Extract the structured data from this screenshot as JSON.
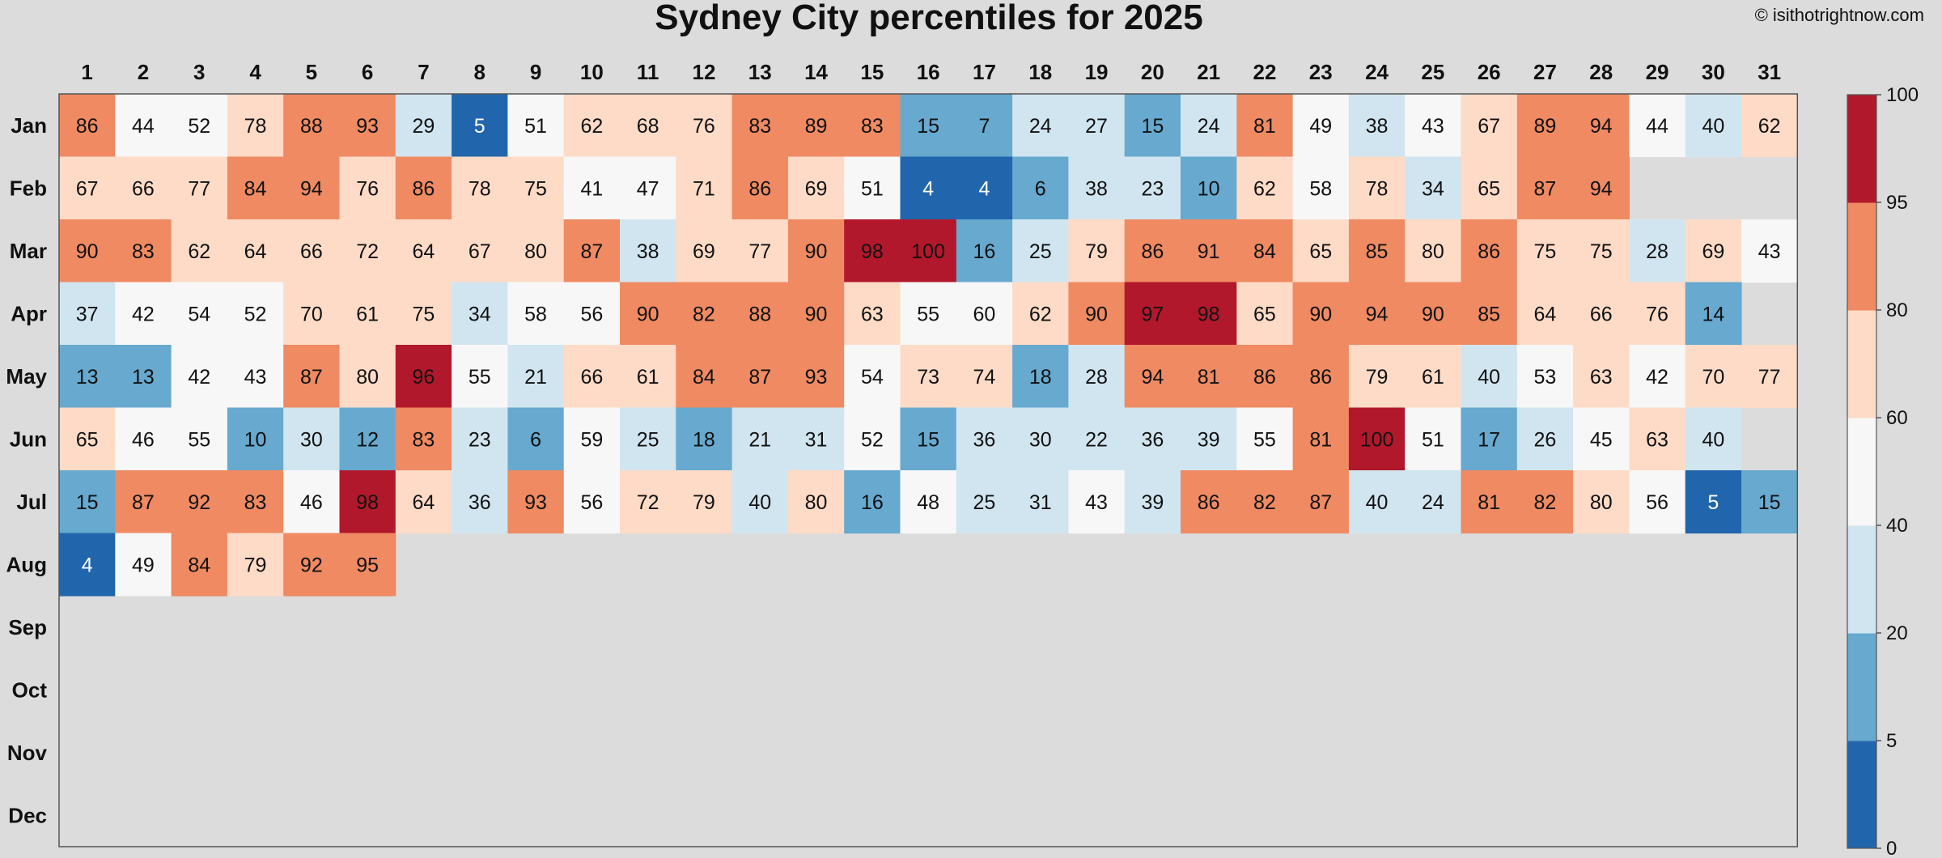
{
  "chart_data": {
    "type": "heatmap",
    "title": "Sydney City percentiles for 2025",
    "credit": "© isithotrightnow.com",
    "x_categories": [
      "1",
      "2",
      "3",
      "4",
      "5",
      "6",
      "7",
      "8",
      "9",
      "10",
      "11",
      "12",
      "13",
      "14",
      "15",
      "16",
      "17",
      "18",
      "19",
      "20",
      "21",
      "22",
      "23",
      "24",
      "25",
      "26",
      "27",
      "28",
      "29",
      "30",
      "31"
    ],
    "y_categories": [
      "Jan",
      "Feb",
      "Mar",
      "Apr",
      "May",
      "Jun",
      "Jul",
      "Aug",
      "Sep",
      "Oct",
      "Nov",
      "Dec"
    ],
    "values": [
      [
        86,
        44,
        52,
        78,
        88,
        93,
        29,
        5,
        51,
        62,
        68,
        76,
        83,
        89,
        83,
        15,
        7,
        24,
        27,
        15,
        24,
        81,
        49,
        38,
        43,
        67,
        89,
        94,
        44,
        40,
        62
      ],
      [
        67,
        66,
        77,
        84,
        94,
        76,
        86,
        78,
        75,
        41,
        47,
        71,
        86,
        69,
        51,
        4,
        4,
        6,
        38,
        23,
        10,
        62,
        58,
        78,
        34,
        65,
        87,
        94,
        null,
        null,
        null
      ],
      [
        90,
        83,
        62,
        64,
        66,
        72,
        64,
        67,
        80,
        87,
        38,
        69,
        77,
        90,
        98,
        100,
        16,
        25,
        79,
        86,
        91,
        84,
        65,
        85,
        80,
        86,
        75,
        75,
        28,
        69,
        43
      ],
      [
        37,
        42,
        54,
        52,
        70,
        61,
        75,
        34,
        58,
        56,
        90,
        82,
        88,
        90,
        63,
        55,
        60,
        62,
        90,
        97,
        98,
        65,
        90,
        94,
        90,
        85,
        64,
        66,
        76,
        14,
        null
      ],
      [
        13,
        13,
        42,
        43,
        87,
        80,
        96,
        55,
        21,
        66,
        61,
        84,
        87,
        93,
        54,
        73,
        74,
        18,
        28,
        94,
        81,
        86,
        86,
        79,
        61,
        40,
        53,
        63,
        42,
        70,
        77
      ],
      [
        65,
        46,
        55,
        10,
        30,
        12,
        83,
        23,
        6,
        59,
        25,
        18,
        21,
        31,
        52,
        15,
        36,
        30,
        22,
        36,
        39,
        55,
        81,
        100,
        51,
        17,
        26,
        45,
        63,
        40,
        null
      ],
      [
        15,
        87,
        92,
        83,
        46,
        98,
        64,
        36,
        93,
        56,
        72,
        79,
        40,
        80,
        16,
        48,
        25,
        31,
        43,
        39,
        86,
        82,
        87,
        40,
        24,
        81,
        82,
        80,
        56,
        5,
        15
      ],
      [
        4,
        49,
        84,
        79,
        92,
        95,
        null,
        null,
        null,
        null,
        null,
        null,
        null,
        null,
        null,
        null,
        null,
        null,
        null,
        null,
        null,
        null,
        null,
        null,
        null,
        null,
        null,
        null,
        null,
        null,
        null
      ],
      [
        null,
        null,
        null,
        null,
        null,
        null,
        null,
        null,
        null,
        null,
        null,
        null,
        null,
        null,
        null,
        null,
        null,
        null,
        null,
        null,
        null,
        null,
        null,
        null,
        null,
        null,
        null,
        null,
        null,
        null,
        null
      ],
      [
        null,
        null,
        null,
        null,
        null,
        null,
        null,
        null,
        null,
        null,
        null,
        null,
        null,
        null,
        null,
        null,
        null,
        null,
        null,
        null,
        null,
        null,
        null,
        null,
        null,
        null,
        null,
        null,
        null,
        null,
        null
      ],
      [
        null,
        null,
        null,
        null,
        null,
        null,
        null,
        null,
        null,
        null,
        null,
        null,
        null,
        null,
        null,
        null,
        null,
        null,
        null,
        null,
        null,
        null,
        null,
        null,
        null,
        null,
        null,
        null,
        null,
        null,
        null
      ],
      [
        null,
        null,
        null,
        null,
        null,
        null,
        null,
        null,
        null,
        null,
        null,
        null,
        null,
        null,
        null,
        null,
        null,
        null,
        null,
        null,
        null,
        null,
        null,
        null,
        null,
        null,
        null,
        null,
        null,
        null,
        null
      ]
    ],
    "color_bins": [
      {
        "min": 0,
        "max": 5,
        "color": "#2166ac"
      },
      {
        "min": 5,
        "max": 20,
        "color": "#67a9cf"
      },
      {
        "min": 20,
        "max": 40,
        "color": "#d1e5f0"
      },
      {
        "min": 40,
        "max": 60,
        "color": "#f7f7f7"
      },
      {
        "min": 60,
        "max": 80,
        "color": "#fddbc7"
      },
      {
        "min": 80,
        "max": 95,
        "color": "#ef8a62"
      },
      {
        "min": 95,
        "max": 100,
        "color": "#b2182b"
      }
    ],
    "colorbar_ticks": [
      "0",
      "5",
      "20",
      "40",
      "60",
      "80",
      "95",
      "100"
    ],
    "missing_color": "#dcdcdc",
    "legend_position": "right",
    "grid": false
  }
}
